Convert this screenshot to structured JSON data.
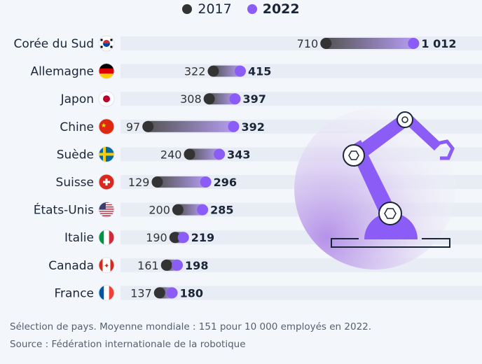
{
  "chart_data": {
    "type": "dumbbell",
    "series": [
      {
        "name": "2017",
        "color": "#333333"
      },
      {
        "name": "2022",
        "color": "#8b5cf6"
      }
    ],
    "categories": [
      {
        "label": "Corée du Sud",
        "flag": "south-korea",
        "v2017": 710,
        "v2022": 1012,
        "v2017_label": "710",
        "v2022_label": "1 012"
      },
      {
        "label": "Allemagne",
        "flag": "germany",
        "v2017": 322,
        "v2022": 415,
        "v2017_label": "322",
        "v2022_label": "415"
      },
      {
        "label": "Japon",
        "flag": "japan",
        "v2017": 308,
        "v2022": 397,
        "v2017_label": "308",
        "v2022_label": "397"
      },
      {
        "label": "Chine",
        "flag": "china",
        "v2017": 97,
        "v2022": 392,
        "v2017_label": "97",
        "v2022_label": "392"
      },
      {
        "label": "Suède",
        "flag": "sweden",
        "v2017": 240,
        "v2022": 343,
        "v2017_label": "240",
        "v2022_label": "343"
      },
      {
        "label": "Suisse",
        "flag": "switzerland",
        "v2017": 129,
        "v2022": 296,
        "v2017_label": "129",
        "v2022_label": "296"
      },
      {
        "label": "États-Unis",
        "flag": "usa",
        "v2017": 200,
        "v2022": 285,
        "v2017_label": "200",
        "v2022_label": "285"
      },
      {
        "label": "Italie",
        "flag": "italy",
        "v2017": 190,
        "v2022": 219,
        "v2017_label": "190",
        "v2022_label": "219"
      },
      {
        "label": "Canada",
        "flag": "canada",
        "v2017": 161,
        "v2022": 198,
        "v2017_label": "161",
        "v2022_label": "198"
      },
      {
        "label": "France",
        "flag": "france",
        "v2017": 137,
        "v2022": 180,
        "v2017_label": "137",
        "v2022_label": "180"
      }
    ],
    "xlim": [
      0,
      1250
    ],
    "legend_position": "top-center"
  },
  "footer": {
    "note": "Sélection de pays. Moyenne mondiale : 151 pour 10 000 employés en 2022.",
    "source": "Source : Fédération internationale de la robotique"
  }
}
